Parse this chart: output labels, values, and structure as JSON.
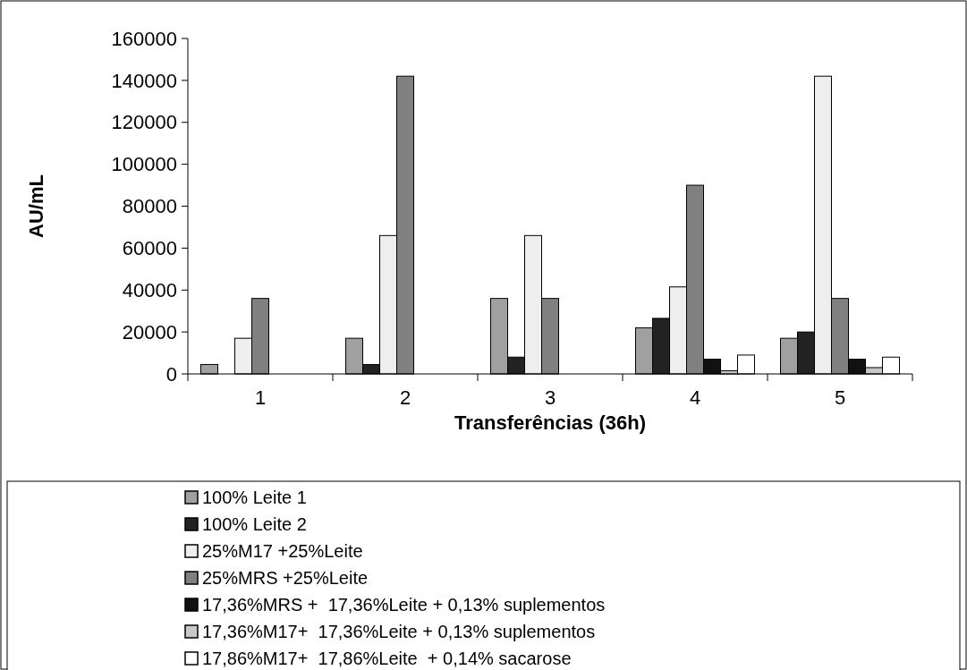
{
  "chart_data": {
    "type": "bar",
    "xlabel": "Transferências (36h)",
    "ylabel": "AU/mL",
    "categories": [
      "1",
      "2",
      "3",
      "4",
      "5"
    ],
    "series": [
      {
        "name": "100% Leite 1",
        "color": "#a0a0a0",
        "values": [
          4500,
          17000,
          36000,
          22000,
          17000
        ]
      },
      {
        "name": "100% Leite 2",
        "color": "#222222",
        "values": [
          null,
          4500,
          8000,
          26500,
          20000
        ]
      },
      {
        "name": "25%M17 +25%Leite",
        "color": "#eeeeee",
        "values": [
          17000,
          66000,
          66000,
          41500,
          142000
        ]
      },
      {
        "name": "25%MRS +25%Leite",
        "color": "#808080",
        "values": [
          36000,
          142000,
          36000,
          90000,
          36000
        ]
      },
      {
        "name": "17,36%MRS +  17,36%Leite + 0,13% suplementos",
        "color": "#111111",
        "values": [
          null,
          null,
          null,
          7000,
          7000
        ]
      },
      {
        "name": "17,36%M17+  17,36%Leite + 0,13% suplementos",
        "color": "#c8c8c8",
        "values": [
          null,
          null,
          null,
          1500,
          3000
        ]
      },
      {
        "name": "17,86%M17+  17,86%Leite  + 0,14% sacarose",
        "color": "#ffffff",
        "values": [
          null,
          null,
          null,
          9000,
          8000
        ]
      }
    ],
    "ylim": [
      0,
      160000
    ],
    "yticks": [
      0,
      20000,
      40000,
      60000,
      80000,
      100000,
      120000,
      140000,
      160000
    ],
    "legend": "bottom",
    "grid": false
  }
}
